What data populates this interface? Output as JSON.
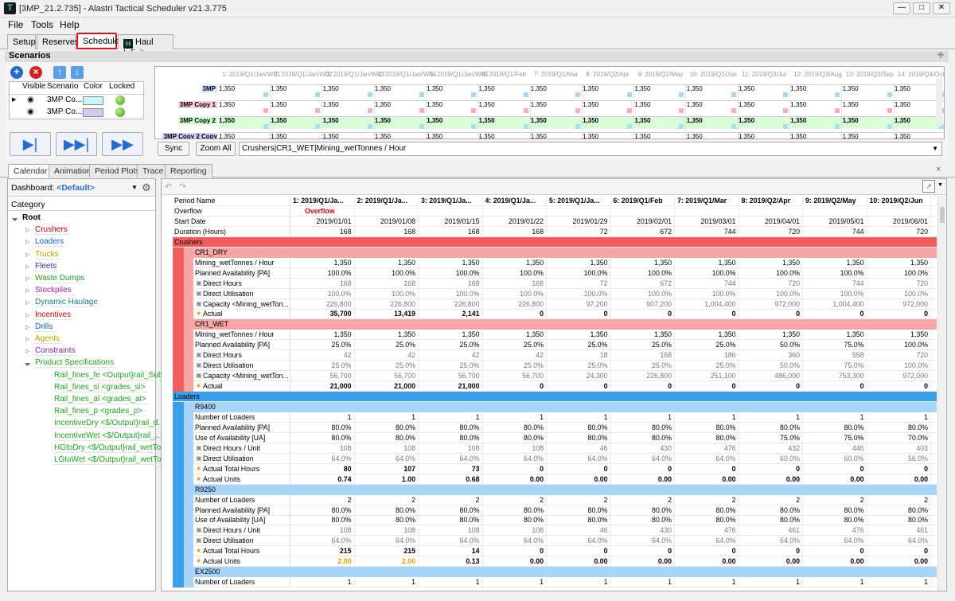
{
  "app": {
    "title": "[3MP_21.2.735] - Alastri Tactical Scheduler v21.3.775"
  },
  "menu": [
    "File",
    "Tools",
    "Help"
  ],
  "main_tabs": [
    "Setup",
    "Reserves",
    "Schedule",
    "Haul Infinity"
  ],
  "active_main_tab": "Schedule",
  "scenarios": {
    "header": "Scenarios",
    "columns": [
      "Visible",
      "Scenario",
      "Color",
      "Locked"
    ],
    "rows": [
      {
        "name": "3MP Co...",
        "color": "#c8f5f5"
      },
      {
        "name": "3MP Co...",
        "color": "#d4c8f5"
      }
    ]
  },
  "gantt": {
    "periods": [
      "1: 2019/Q1/Jan/W01",
      "2: 2019/Q1/Jan/W02",
      "3: 2019/Q1/Jan/W03",
      "4: 2019/Q1/Jan/W04",
      "5: 2019/Q1/Jan/W05",
      "6: 2019/Q1/Feb",
      "7: 2019/Q1/Mar",
      "8: 2019/Q2/Apr",
      "9: 2019/Q2/May",
      "10: 2019/Q2/Jun",
      "11: 2019/Q3/Jul",
      "12: 2019/Q3/Aug",
      "13: 2019/Q3/Sep",
      "14: 2019/Q4/Oct"
    ],
    "lanes": [
      {
        "label": "3MP",
        "bg": "#cfe8ff",
        "sq": "#a8d4ff",
        "bold": false
      },
      {
        "label": "3MP Copy 1",
        "bg": "#ffc8dc",
        "sq": "#ffaac8",
        "bold": false
      },
      {
        "label": "3MP Copy 2",
        "bg": "#c8ffc8",
        "sq": "#a8e0f0",
        "bold": true
      },
      {
        "label": "3MP Copy 2 Copy 1",
        "bg": "#d8ccff",
        "sq": "#a8d4ff",
        "bold": false
      }
    ],
    "value": "1,350",
    "sync_label": "Sync",
    "zoom_label": "Zoom All",
    "field": "Crushers|CR1_WET|Mining_wetTonnes / Hour"
  },
  "bottom_tabs": [
    "Calendar",
    "Animation",
    "Period Plots",
    "Trace",
    "Reporting"
  ],
  "active_bottom_tab": "Calendar",
  "dashboard": {
    "label": "Dashboard:",
    "value": "<Default>"
  },
  "category_label": "Category",
  "tree": [
    {
      "label": "Root",
      "color": "#000",
      "level": 0,
      "bold": true
    },
    {
      "label": "Crushers",
      "color": "#c00000",
      "level": 1
    },
    {
      "label": "Loaders",
      "color": "#1060c0",
      "level": 1
    },
    {
      "label": "Trucks",
      "color": "#b8a000",
      "level": 1
    },
    {
      "label": "Fleets",
      "color": "#3030b0",
      "level": 1
    },
    {
      "label": "Waste Dumps",
      "color": "#20a020",
      "level": 1
    },
    {
      "label": "Stockpiles",
      "color": "#a020a0",
      "level": 1
    },
    {
      "label": "Dynamic Haulage",
      "color": "#208080",
      "level": 1
    },
    {
      "label": "Incentives",
      "color": "#c00000",
      "level": 1
    },
    {
      "label": "Drills",
      "color": "#1060c0",
      "level": 1
    },
    {
      "label": "Agents",
      "color": "#b8a000",
      "level": 1
    },
    {
      "label": "Constraints",
      "color": "#8020a0",
      "level": 1
    },
    {
      "label": "Product Specifications",
      "color": "#20a020",
      "level": 1,
      "expanded": true
    },
    {
      "label": "Rail_fines_fe <Output}rail_SubP...",
      "color": "#20a020",
      "level": 2
    },
    {
      "label": "Rail_fines_si <grades_si>",
      "color": "#20a020",
      "level": 2
    },
    {
      "label": "Rail_fines_al <grades_al>",
      "color": "#20a020",
      "level": 2
    },
    {
      "label": "Rail_fines_p <grades_p>",
      "color": "#20a020",
      "level": 2
    },
    {
      "label": "IncentiveDry <$/Output}rail_d...",
      "color": "#20a020",
      "level": 2
    },
    {
      "label": "IncentiveWet <$/Output}rail_...",
      "color": "#20a020",
      "level": 2
    },
    {
      "label": "HGtoDry <$/Output}rail_wetTon...",
      "color": "#20a020",
      "level": 2
    },
    {
      "label": "LGtoWet <$/Output}rail_wetTo...",
      "color": "#20a020",
      "level": 2
    }
  ],
  "grid": {
    "columns": [
      "1: 2019/Q1/Ja...",
      "2: 2019/Q1/Ja...",
      "3: 2019/Q1/Ja...",
      "4: 2019/Q1/Ja...",
      "5: 2019/Q1/Ja...",
      "6: 2019/Q1/Feb",
      "7: 2019/Q1/Mar",
      "8: 2019/Q2/Apr",
      "9: 2019/Q2/May",
      "10: 2019/Q2/Jun"
    ],
    "header_rows": [
      {
        "label": "Period Name",
        "values": [
          "1: 2019/Q1/Ja...",
          "2: 2019/Q1/Ja...",
          "3: 2019/Q1/Ja...",
          "4: 2019/Q1/Ja...",
          "5: 2019/Q1/Ja...",
          "6: 2019/Q1/Feb",
          "7: 2019/Q1/Mar",
          "8: 2019/Q2/Apr",
          "9: 2019/Q2/May",
          "10: 2019/Q2/Jun"
        ]
      },
      {
        "label": "Overflow",
        "values": [
          "Overflow",
          "",
          "",
          "",
          "",
          "",
          "",
          "",
          "",
          ""
        ]
      },
      {
        "label": "Start Date",
        "values": [
          "2019/01/01",
          "2019/01/08",
          "2019/01/15",
          "2019/01/22",
          "2019/01/29",
          "2019/02/01",
          "2019/03/01",
          "2019/04/01",
          "2019/05/01",
          "2019/06/01"
        ]
      },
      {
        "label": "Duration (Hours)",
        "values": [
          "168",
          "168",
          "168",
          "168",
          "72",
          "672",
          "744",
          "720",
          "744",
          "720"
        ]
      }
    ],
    "rows": [
      {
        "type": "group",
        "label": "Crushers",
        "color": "#f25c5c",
        "text": "#000"
      },
      {
        "type": "sub",
        "label": "CR1_DRY",
        "color": "#f7a5a5"
      },
      {
        "type": "data",
        "label": "Mining_wetTonnes / Hour",
        "values": [
          "1,350",
          "1,350",
          "1,350",
          "1,350",
          "1,350",
          "1,350",
          "1,350",
          "1,350",
          "1,350",
          "1,350"
        ]
      },
      {
        "type": "data",
        "label": "Planned Availability [PA]",
        "values": [
          "100.0%",
          "100.0%",
          "100.0%",
          "100.0%",
          "100.0%",
          "100.0%",
          "100.0%",
          "100.0%",
          "100.0%",
          "100.0%"
        ]
      },
      {
        "type": "data",
        "label": "Direct Hours",
        "lock": true,
        "grey": true,
        "values": [
          "168",
          "168",
          "168",
          "168",
          "72",
          "672",
          "744",
          "720",
          "744",
          "720"
        ]
      },
      {
        "type": "data",
        "label": "Direct Utilisation",
        "lock": true,
        "grey": true,
        "values": [
          "100.0%",
          "100.0%",
          "100.0%",
          "100.0%",
          "100.0%",
          "100.0%",
          "100.0%",
          "100.0%",
          "100.0%",
          "100.0%"
        ]
      },
      {
        "type": "data",
        "label": "Capacity <Mining_wetTon...",
        "lock": true,
        "grey": true,
        "values": [
          "226,800",
          "226,800",
          "226,800",
          "226,800",
          "97,200",
          "907,200",
          "1,004,400",
          "972,000",
          "1,004,400",
          "972,000"
        ]
      },
      {
        "type": "data",
        "label": "Actual",
        "star": true,
        "bold": true,
        "values": [
          "35,700",
          "13,419",
          "2,141",
          "0",
          "0",
          "0",
          "0",
          "0",
          "0",
          "0"
        ]
      },
      {
        "type": "sub",
        "label": "CR1_WET",
        "color": "#f7a5a5"
      },
      {
        "type": "data",
        "label": "Mining_wetTonnes / Hour",
        "values": [
          "1,350",
          "1,350",
          "1,350",
          "1,350",
          "1,350",
          "1,350",
          "1,350",
          "1,350",
          "1,350",
          "1,350"
        ]
      },
      {
        "type": "data",
        "label": "Planned Availability [PA]",
        "values": [
          "25.0%",
          "25.0%",
          "25.0%",
          "25.0%",
          "25.0%",
          "25.0%",
          "25.0%",
          "50.0%",
          "75.0%",
          "100.0%"
        ]
      },
      {
        "type": "data",
        "label": "Direct Hours",
        "lock": true,
        "grey": true,
        "values": [
          "42",
          "42",
          "42",
          "42",
          "18",
          "168",
          "186",
          "360",
          "558",
          "720"
        ]
      },
      {
        "type": "data",
        "label": "Direct Utilisation",
        "lock": true,
        "grey": true,
        "values": [
          "25.0%",
          "25.0%",
          "25.0%",
          "25.0%",
          "25.0%",
          "25.0%",
          "25.0%",
          "50.0%",
          "75.0%",
          "100.0%"
        ]
      },
      {
        "type": "data",
        "label": "Capacity <Mining_wetTon...",
        "lock": true,
        "grey": true,
        "values": [
          "56,700",
          "56,700",
          "56,700",
          "56,700",
          "24,300",
          "226,800",
          "251,100",
          "486,000",
          "753,300",
          "972,000"
        ]
      },
      {
        "type": "data",
        "label": "Actual",
        "star": true,
        "bold": true,
        "values": [
          "21,000",
          "21,000",
          "21,000",
          "0",
          "0",
          "0",
          "0",
          "0",
          "0",
          "0"
        ]
      },
      {
        "type": "group",
        "label": "Loaders",
        "color": "#3a9ee8",
        "text": "#000"
      },
      {
        "type": "sub",
        "label": "R9400",
        "color": "#a8d4f8"
      },
      {
        "type": "data",
        "label": "Number of Loaders",
        "values": [
          "1",
          "1",
          "1",
          "1",
          "1",
          "1",
          "1",
          "1",
          "1",
          "1"
        ]
      },
      {
        "type": "data",
        "label": "Planned Availability [PA]",
        "values": [
          "80.0%",
          "80.0%",
          "80.0%",
          "80.0%",
          "80.0%",
          "80.0%",
          "80.0%",
          "80.0%",
          "80.0%",
          "80.0%"
        ]
      },
      {
        "type": "data",
        "label": "Use of Availability [UA]",
        "values": [
          "80.0%",
          "80.0%",
          "80.0%",
          "80.0%",
          "80.0%",
          "80.0%",
          "80.0%",
          "75.0%",
          "75.0%",
          "70.0%"
        ]
      },
      {
        "type": "data",
        "label": "Direct Hours / Unit",
        "lock": true,
        "grey": true,
        "values": [
          "108",
          "108",
          "108",
          "108",
          "46",
          "430",
          "476",
          "432",
          "446",
          "403"
        ]
      },
      {
        "type": "data",
        "label": "Direct Utilisation",
        "lock": true,
        "grey": true,
        "values": [
          "64.0%",
          "64.0%",
          "64.0%",
          "64.0%",
          "64.0%",
          "64.0%",
          "64.0%",
          "60.0%",
          "60.0%",
          "56.0%"
        ]
      },
      {
        "type": "data",
        "label": "Actual Total Hours",
        "star": true,
        "bold": true,
        "values": [
          "80",
          "107",
          "73",
          "0",
          "0",
          "0",
          "0",
          "0",
          "0",
          "0"
        ]
      },
      {
        "type": "data",
        "label": "Actual Units",
        "star": true,
        "bold": true,
        "values": [
          "0.74",
          "1.00",
          "0.68",
          "0.00",
          "0.00",
          "0.00",
          "0.00",
          "0.00",
          "0.00",
          "0.00"
        ]
      },
      {
        "type": "sub",
        "label": "R9250",
        "color": "#a8d4f8"
      },
      {
        "type": "data",
        "label": "Number of Loaders",
        "values": [
          "2",
          "2",
          "2",
          "2",
          "2",
          "2",
          "2",
          "2",
          "2",
          "2"
        ]
      },
      {
        "type": "data",
        "label": "Planned Availability [PA]",
        "values": [
          "80.0%",
          "80.0%",
          "80.0%",
          "80.0%",
          "80.0%",
          "80.0%",
          "80.0%",
          "80.0%",
          "80.0%",
          "80.0%"
        ]
      },
      {
        "type": "data",
        "label": "Use of Availability [UA]",
        "values": [
          "80.0%",
          "80.0%",
          "80.0%",
          "80.0%",
          "80.0%",
          "80.0%",
          "80.0%",
          "80.0%",
          "80.0%",
          "80.0%"
        ]
      },
      {
        "type": "data",
        "label": "Direct Hours / Unit",
        "lock": true,
        "grey": true,
        "values": [
          "108",
          "108",
          "108",
          "108",
          "46",
          "430",
          "476",
          "461",
          "476",
          "461"
        ]
      },
      {
        "type": "data",
        "label": "Direct Utilisation",
        "lock": true,
        "grey": true,
        "values": [
          "64.0%",
          "64.0%",
          "64.0%",
          "64.0%",
          "64.0%",
          "64.0%",
          "64.0%",
          "64.0%",
          "64.0%",
          "64.0%"
        ]
      },
      {
        "type": "data",
        "label": "Actual Total Hours",
        "star": true,
        "bold": true,
        "values": [
          "215",
          "215",
          "14",
          "0",
          "0",
          "0",
          "0",
          "0",
          "0",
          "0"
        ]
      },
      {
        "type": "data",
        "label": "Actual Units",
        "star": true,
        "bold": true,
        "orange": [
          0,
          1
        ],
        "values": [
          "2.00",
          "2.00",
          "0.13",
          "0.00",
          "0.00",
          "0.00",
          "0.00",
          "0.00",
          "0.00",
          "0.00"
        ]
      },
      {
        "type": "sub",
        "label": "EX2500",
        "color": "#a8d4f8"
      },
      {
        "type": "data",
        "label": "Number of Loaders",
        "values": [
          "1",
          "1",
          "1",
          "1",
          "1",
          "1",
          "1",
          "1",
          "1",
          "1"
        ]
      }
    ]
  }
}
